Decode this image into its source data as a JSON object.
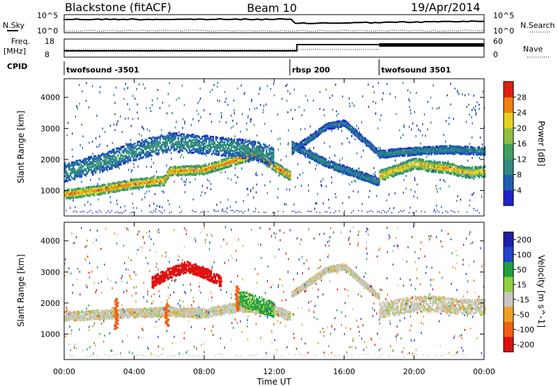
{
  "header": {
    "station": "Blackstone (fitACF)",
    "beam": "Beam 10",
    "date": "19/Apr/2014"
  },
  "noise_panel": {
    "left_label": "N.Sky",
    "right_label": "N.Search",
    "left_ticks": [
      "10^5",
      "10^0"
    ],
    "right_ticks": [
      "10^5",
      "10^0"
    ]
  },
  "freq_panel": {
    "left_label_1": "Freq.",
    "left_label_2": "[MHz]",
    "right_label": "Nave",
    "left_ticks": [
      "18",
      "8"
    ],
    "right_ticks": [
      "60",
      "0"
    ],
    "cpid_label": "CPID",
    "cpid_segments": [
      {
        "name": "twofsound -3501",
        "start": 0.0,
        "end": 12.9
      },
      {
        "name": "rbsp 200",
        "start": 12.9,
        "end": 18.0
      },
      {
        "name": "twofsound 3501",
        "start": 18.0,
        "end": 24.0
      }
    ]
  },
  "chart_data": [
    {
      "type": "heatmap",
      "name": "power",
      "ylabel": "Slant Range [km]",
      "ylim": [
        180,
        4600
      ],
      "xlim": [
        0,
        24
      ],
      "y_ticks": [
        1000,
        2000,
        3000,
        4000
      ],
      "colorbar": {
        "label": "Power [dB]",
        "range": [
          0,
          32
        ],
        "ticks": [
          "4",
          "8",
          "12",
          "16",
          "20",
          "24",
          "28"
        ]
      },
      "echo_bands": [
        {
          "t": [
            0,
            2,
            4,
            5.7,
            6,
            8,
            10,
            11,
            12,
            12.9
          ],
          "r": [
            900,
            1050,
            1250,
            1350,
            1650,
            1700,
            2050,
            2200,
            1800,
            1500
          ],
          "width": 300,
          "power": 24
        },
        {
          "t": [
            0,
            2,
            4,
            6,
            8,
            10,
            11,
            12
          ],
          "r": [
            1600,
            1900,
            2300,
            2600,
            2500,
            2400,
            2300,
            2100
          ],
          "width": 600,
          "power": 10
        },
        {
          "t": [
            13,
            14,
            15,
            16,
            17,
            18
          ],
          "r": [
            2500,
            2200,
            1900,
            1700,
            1500,
            1300
          ],
          "width": 250,
          "power": 9
        },
        {
          "t": [
            13,
            14,
            15,
            16,
            17,
            18
          ],
          "r": [
            2300,
            2700,
            3100,
            3200,
            2700,
            2200
          ],
          "width": 200,
          "power": 8
        },
        {
          "t": [
            18,
            19,
            20,
            21,
            22,
            23,
            24
          ],
          "r": [
            1500,
            1700,
            1900,
            1800,
            1750,
            1600,
            1650
          ],
          "width": 350,
          "power": 22
        },
        {
          "t": [
            18,
            20,
            22,
            24
          ],
          "r": [
            2200,
            2300,
            2350,
            2300
          ],
          "width": 250,
          "power": 9
        }
      ]
    },
    {
      "type": "heatmap",
      "name": "velocity",
      "ylabel": "Slant Range [km]",
      "xlabel": "Time UT",
      "ylim": [
        180,
        4600
      ],
      "xlim": [
        0,
        24
      ],
      "y_ticks": [
        1000,
        2000,
        3000,
        4000
      ],
      "x_ticks": [
        "00:00",
        "04:00",
        "08:00",
        "12:00",
        "16:00",
        "20:00",
        "00:00"
      ],
      "colorbar": {
        "label": "Velocity [m s^-1]",
        "ticks": [
          "200",
          "100",
          "50",
          "15",
          "-15",
          "-50",
          "-100",
          "-200"
        ]
      },
      "echo_bands": [
        {
          "t": [
            0,
            2,
            4,
            6,
            8,
            10,
            12,
            12.9
          ],
          "r": [
            1600,
            1650,
            1700,
            1750,
            1700,
            1900,
            1800,
            1600
          ],
          "width": 300,
          "vel": 0
        },
        {
          "t": [
            5,
            6,
            7,
            8,
            9
          ],
          "r": [
            2700,
            3000,
            3200,
            3000,
            2700
          ],
          "width": 350,
          "vel": -150
        },
        {
          "t": [
            10,
            11,
            12
          ],
          "r": [
            2200,
            2000,
            1800
          ],
          "width": 500,
          "vel": 40
        },
        {
          "t": [
            18,
            19,
            20,
            21,
            22,
            23,
            24
          ],
          "r": [
            1800,
            1900,
            2000,
            2000,
            1950,
            1900,
            1900
          ],
          "width": 500,
          "vel": 0
        },
        {
          "t": [
            13,
            14,
            15,
            16,
            17,
            18
          ],
          "r": [
            2300,
            2700,
            3100,
            3200,
            2700,
            2200
          ],
          "width": 200,
          "vel": 0
        }
      ],
      "vertical_streaks": [
        {
          "t": 5.8,
          "r": [
            1300,
            2000
          ],
          "vel": -70
        },
        {
          "t": 9.8,
          "r": [
            1800,
            2600
          ],
          "vel": -70
        },
        {
          "t": 2.9,
          "r": [
            1200,
            2200
          ],
          "vel": -60
        }
      ]
    }
  ],
  "colors": {
    "power_scale": [
      "#2222cc",
      "#1f5fae",
      "#2f8a80",
      "#40a060",
      "#90c040",
      "#e8d020",
      "#f08010",
      "#e02010"
    ],
    "velocity_scale": [
      "#2020a8",
      "#2244cc",
      "#20a040",
      "#90d040",
      "#c8c8c0",
      "#f0a020",
      "#f06010",
      "#e01010"
    ]
  }
}
